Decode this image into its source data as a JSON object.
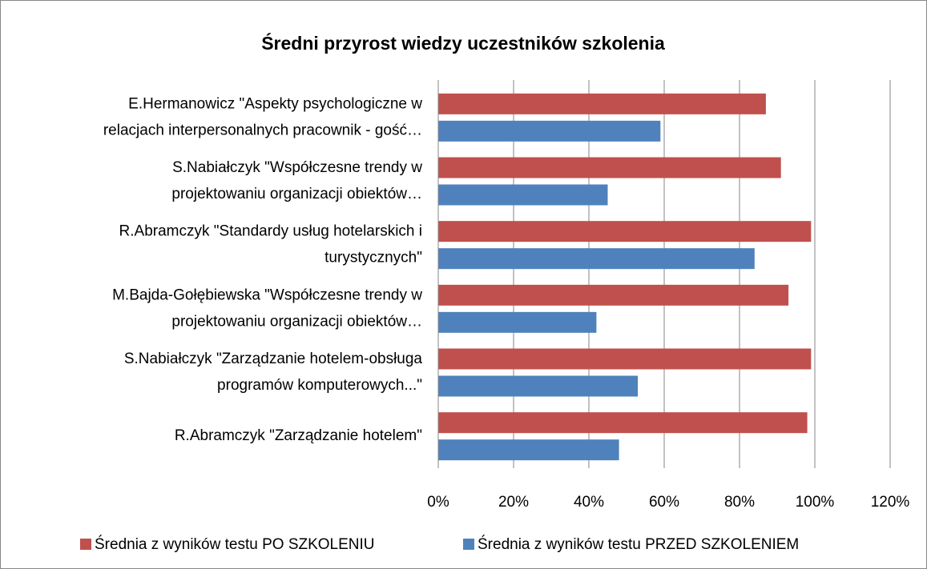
{
  "chart_data": {
    "type": "bar",
    "orientation": "horizontal",
    "title": "Średni przyrost wiedzy uczestników szkolenia",
    "categories": [
      [
        "E.Hermanowicz \"Aspekty psychologiczne w",
        "relacjach interpersonalnych pracownik - gość…"
      ],
      [
        "S.Nabiałczyk \"Współczesne trendy w",
        "projektowaniu organizacji obiektów…"
      ],
      [
        "R.Abramczyk \"Standardy usług hotelarskich i",
        "turystycznych\""
      ],
      [
        "M.Bajda-Gołębiewska \"Współczesne trendy w",
        "projektowaniu organizacji obiektów…"
      ],
      [
        "S.Nabiałczyk \"Zarządzanie hotelem-obsługa",
        "programów komputerowych...\""
      ],
      [
        "R.Abramczyk \"Zarządzanie hotelem\""
      ]
    ],
    "series": [
      {
        "name": "Średnia z wyników testu PO SZKOLENIU",
        "color": "#c0504d",
        "values": [
          87,
          91,
          99,
          93,
          99,
          98
        ]
      },
      {
        "name": "Średnia z wyników testu PRZED SZKOLENIEM",
        "color": "#4f81bd",
        "values": [
          59,
          45,
          84,
          42,
          53,
          48
        ]
      }
    ],
    "xlim": [
      0,
      120
    ],
    "xticks": [
      {
        "value": 0,
        "label": "0%"
      },
      {
        "value": 20,
        "label": "20%"
      },
      {
        "value": 40,
        "label": "40%"
      },
      {
        "value": 60,
        "label": "60%"
      },
      {
        "value": 80,
        "label": "80%"
      },
      {
        "value": 100,
        "label": "100%"
      },
      {
        "value": 120,
        "label": "120%"
      }
    ],
    "grid": true,
    "legend": "bottom"
  }
}
